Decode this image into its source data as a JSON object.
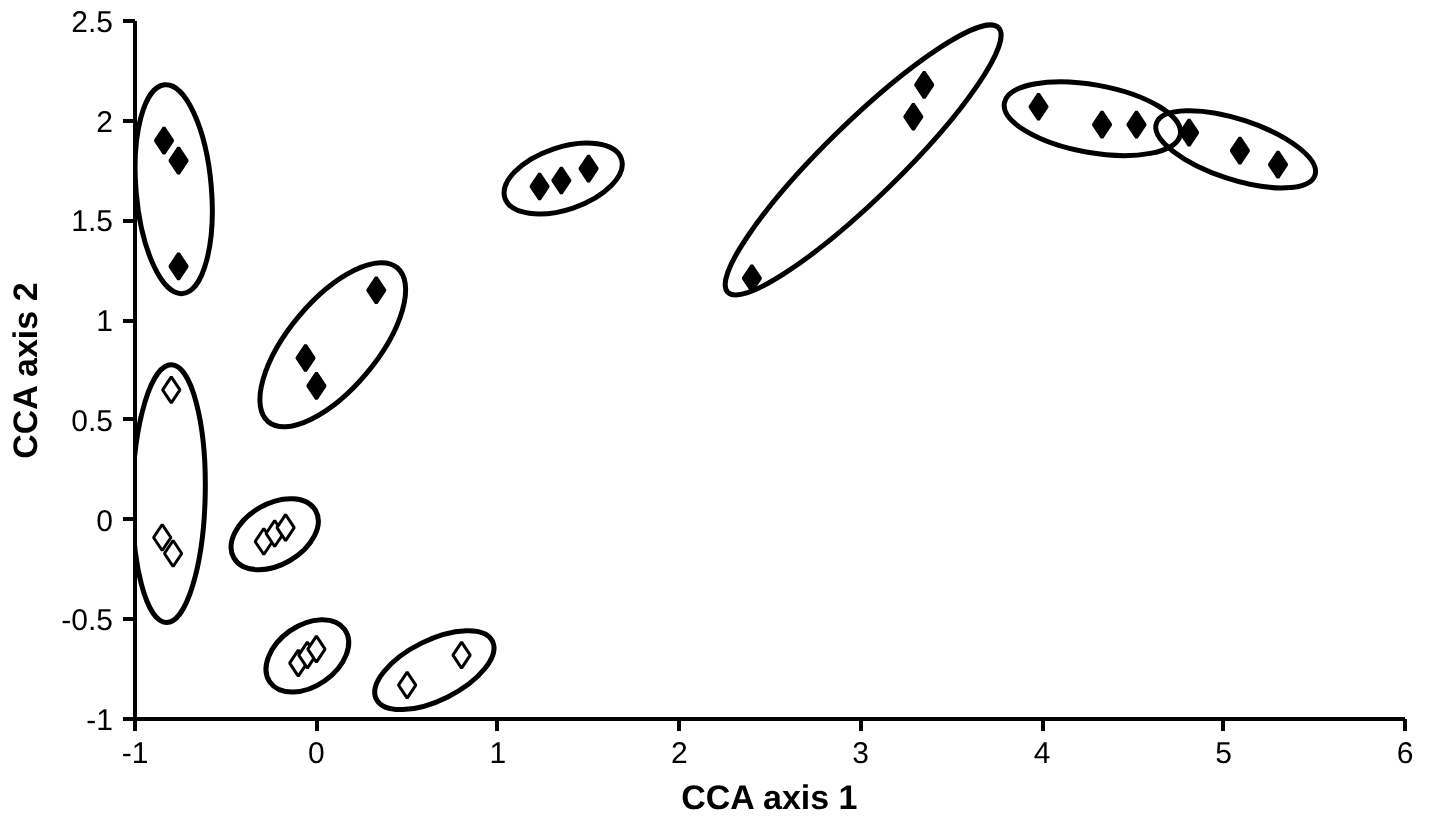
{
  "chart_data": {
    "type": "scatter",
    "xlabel": "CCA axis 1",
    "ylabel": "CCA axis 2",
    "marker": "diamond",
    "xlim": [
      -1,
      6
    ],
    "xticks": [
      -1,
      0,
      1,
      2,
      3,
      4,
      5,
      6
    ],
    "ylim": [
      -1,
      2.5
    ],
    "yticks": [
      -1,
      -0.5,
      0,
      0.5,
      1,
      1.5,
      2,
      2.5
    ],
    "series": [
      {
        "color": "#000000",
        "x": [
          -0.84,
          -0.76,
          -0.76
        ],
        "values": [
          1.9,
          1.8,
          1.27
        ]
      },
      {
        "color": "#000000",
        "x": [
          0.33,
          -0.06,
          0.0
        ],
        "values": [
          1.15,
          0.81,
          0.67
        ]
      },
      {
        "color": "#000000",
        "x": [
          1.23,
          1.35,
          1.5
        ],
        "values": [
          1.67,
          1.7,
          1.76
        ]
      },
      {
        "color": "#000000",
        "x": [
          2.4,
          3.29,
          3.35
        ],
        "values": [
          1.21,
          2.02,
          2.18
        ]
      },
      {
        "color": "#000000",
        "x": [
          3.98,
          4.33,
          4.52
        ],
        "values": [
          2.07,
          1.98,
          1.98
        ]
      },
      {
        "color": "#000000",
        "x": [
          4.81,
          5.09,
          5.3
        ],
        "values": [
          1.94,
          1.85,
          1.78
        ]
      },
      {
        "color": "#ffffff",
        "x": [
          -0.8,
          -0.85,
          -0.79
        ],
        "values": [
          0.65,
          -0.09,
          -0.17
        ]
      },
      {
        "color": "#ffffff",
        "x": [
          -0.29,
          -0.23,
          -0.17
        ],
        "values": [
          -0.11,
          -0.07,
          -0.04
        ]
      },
      {
        "color": "#ffffff",
        "x": [
          -0.1,
          -0.05,
          0.0
        ],
        "values": [
          -0.72,
          -0.68,
          -0.65
        ]
      },
      {
        "color": "#ffffff",
        "x": [
          0.5,
          0.8
        ],
        "values": [
          -0.83,
          -0.68
        ]
      }
    ]
  }
}
